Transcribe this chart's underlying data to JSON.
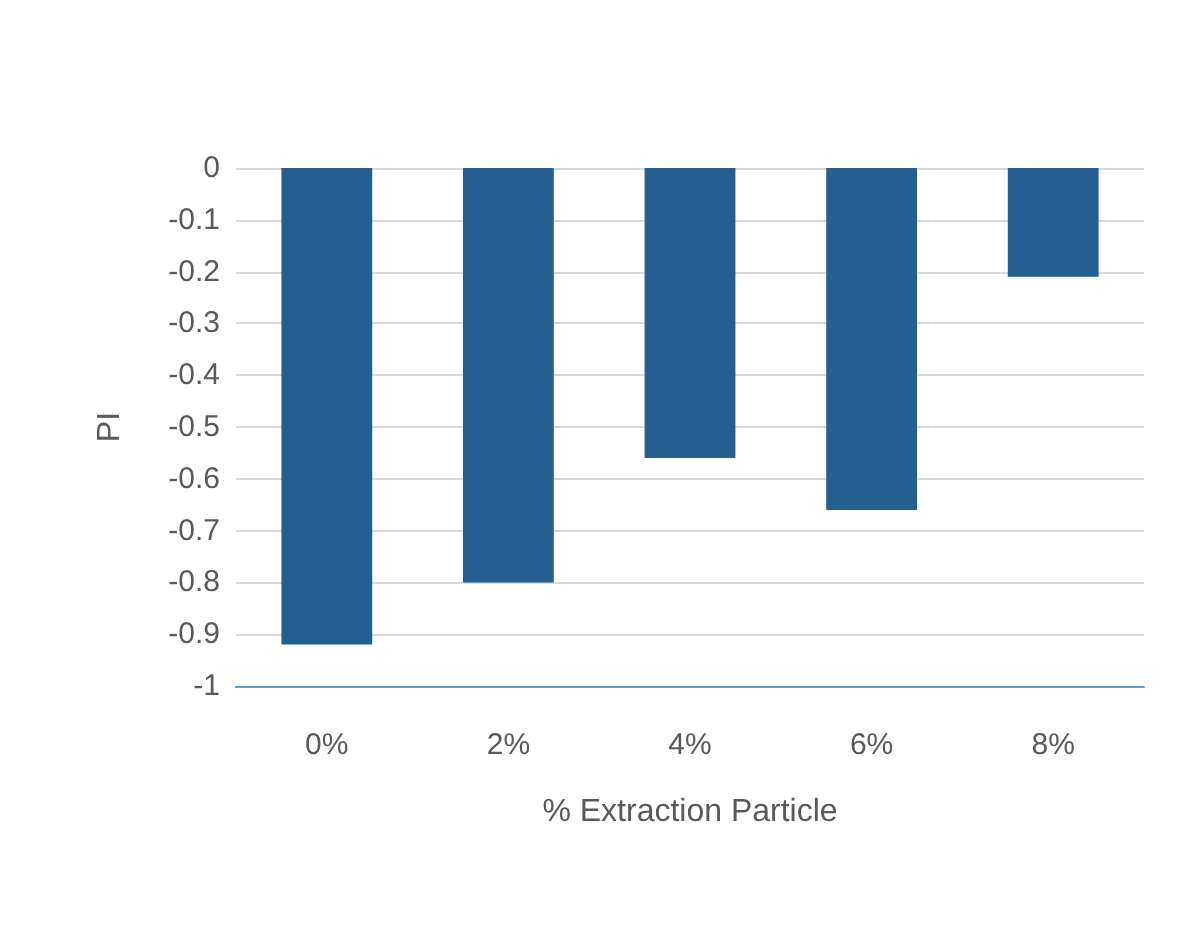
{
  "chart_data": {
    "type": "bar",
    "xlabel": "% Extraction Particle",
    "ylabel": "PI",
    "categories": [
      "0%",
      "2%",
      "4%",
      "6%",
      "8%"
    ],
    "values": [
      -0.92,
      -0.8,
      -0.56,
      -0.66,
      -0.21
    ],
    "color": "#255e91",
    "ylim": [
      -1,
      0
    ],
    "yticks": [
      -1,
      -0.9,
      -0.8,
      -0.7,
      -0.6,
      -0.5,
      -0.4,
      -0.3,
      -0.2,
      -0.1,
      0
    ],
    "grid": "y"
  }
}
